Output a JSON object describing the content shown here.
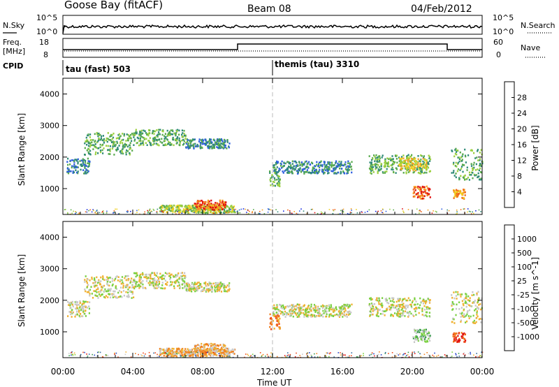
{
  "header": {
    "station": "Goose Bay (fitACF)",
    "beam": "Beam 08",
    "date": "04/Feb/2012"
  },
  "strips": {
    "nsky_label": "N.Sky",
    "nsearch_label": "N.Search",
    "freq_label_1": "Freq.",
    "freq_label_2": "[MHz]",
    "nave_label": "Nave",
    "cpid_label": "CPID",
    "nsky_ticks": [
      "10^5",
      "10^0"
    ],
    "nsearch_ticks": [
      "10^5",
      "10^0"
    ],
    "freq_ticks": [
      "18",
      "8"
    ],
    "nave_ticks": [
      "60",
      "0"
    ],
    "cpid_left": "tau (fast) 503",
    "cpid_right": "themis (tau) 3310"
  },
  "chart_data": [
    {
      "type": "heatmap",
      "quantity": "Power",
      "ylabel": "Slant Range [km]",
      "colorbar_label": "Power [dB]",
      "ylim": [
        180,
        4500
      ],
      "yticks": [
        "1000",
        "2000",
        "3000",
        "4000"
      ],
      "colorbar_ticks": [
        "4",
        "8",
        "12",
        "16",
        "20",
        "24",
        "28"
      ],
      "colorscale": [
        "#1428e0",
        "#2f5fe0",
        "#2f8a78",
        "#58aa4c",
        "#9cd040",
        "#f0d020",
        "#f5a020",
        "#f06818",
        "#e01010"
      ],
      "echo_bands": [
        {
          "t": [
            0.2,
            1.5
          ],
          "r": [
            1500,
            2000
          ],
          "level": 2
        },
        {
          "t": [
            1.2,
            4.0
          ],
          "r": [
            2100,
            2800
          ],
          "level": 3
        },
        {
          "t": [
            4.0,
            7.0
          ],
          "r": [
            2400,
            2900
          ],
          "level": 3
        },
        {
          "t": [
            7.0,
            9.5
          ],
          "r": [
            2300,
            2600
          ],
          "level": 2
        },
        {
          "t": [
            5.5,
            9.8
          ],
          "r": [
            250,
            500
          ],
          "level": 4
        },
        {
          "t": [
            7.5,
            9.3
          ],
          "r": [
            350,
            650
          ],
          "level": 7
        },
        {
          "t": [
            12.0,
            16.5
          ],
          "r": [
            1500,
            1900
          ],
          "level": 2
        },
        {
          "t": [
            11.8,
            12.4
          ],
          "r": [
            1100,
            1600
          ],
          "level": 3
        },
        {
          "t": [
            17.5,
            21.0
          ],
          "r": [
            1500,
            2100
          ],
          "level": 3
        },
        {
          "t": [
            19.2,
            20.8
          ],
          "r": [
            1600,
            2000
          ],
          "level": 5
        },
        {
          "t": [
            20.0,
            21.0
          ],
          "r": [
            700,
            1100
          ],
          "level": 7
        },
        {
          "t": [
            22.2,
            24.0
          ],
          "r": [
            1300,
            2300
          ],
          "level": 3
        },
        {
          "t": [
            22.3,
            23.0
          ],
          "r": [
            700,
            1000
          ],
          "level": 6
        }
      ]
    },
    {
      "type": "heatmap",
      "quantity": "Velocity",
      "ylabel": "Slant Range [km]",
      "colorbar_label": "Velocity [m s^-1]",
      "ylim": [
        180,
        4500
      ],
      "yticks": [
        "1000",
        "2000",
        "3000",
        "4000"
      ],
      "colorbar_ticks": [
        "1000",
        "500",
        "100",
        "25",
        "-25",
        "-100",
        "-500",
        "-1000"
      ],
      "colorscale": [
        "#2040c8",
        "#2f6aa0",
        "#3a9a50",
        "#7ad040",
        "#c8c8c8",
        "#f0b030",
        "#f08020",
        "#f04818",
        "#e01010"
      ],
      "echo_bands": [
        {
          "t": [
            0.2,
            1.5
          ],
          "r": [
            1500,
            2000
          ],
          "level": 4
        },
        {
          "t": [
            1.2,
            4.0
          ],
          "r": [
            2100,
            2800
          ],
          "level": 4
        },
        {
          "t": [
            4.0,
            7.0
          ],
          "r": [
            2400,
            2900
          ],
          "level": 4
        },
        {
          "t": [
            7.0,
            9.5
          ],
          "r": [
            2300,
            2600
          ],
          "level": 4
        },
        {
          "t": [
            5.5,
            9.8
          ],
          "r": [
            250,
            500
          ],
          "level": 5
        },
        {
          "t": [
            7.5,
            9.3
          ],
          "r": [
            350,
            650
          ],
          "level": 5
        },
        {
          "t": [
            12.0,
            16.5
          ],
          "r": [
            1500,
            1900
          ],
          "level": 4
        },
        {
          "t": [
            11.8,
            12.4
          ],
          "r": [
            1100,
            1600
          ],
          "level": 6
        },
        {
          "t": [
            17.5,
            21.0
          ],
          "r": [
            1500,
            2100
          ],
          "level": 4
        },
        {
          "t": [
            20.0,
            21.0
          ],
          "r": [
            700,
            1100
          ],
          "level": 3
        },
        {
          "t": [
            22.2,
            24.0
          ],
          "r": [
            1300,
            2300
          ],
          "level": 4
        },
        {
          "t": [
            22.3,
            23.0
          ],
          "r": [
            700,
            1000
          ],
          "level": 7
        }
      ]
    }
  ],
  "xaxis": {
    "label": "Time UT",
    "ticks": [
      "00:00",
      "04:00",
      "08:00",
      "12:00",
      "16:00",
      "20:00",
      "00:00"
    ],
    "xlim_hours": [
      0,
      24
    ],
    "mode_change_hour": 12,
    "freq_change_hours": [
      10,
      22
    ]
  }
}
